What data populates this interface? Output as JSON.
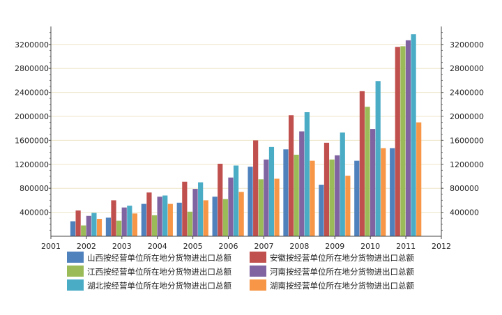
{
  "chart_data": {
    "type": "bar",
    "title": "",
    "xlabel": "",
    "ylabel": "",
    "x_ticks": [
      "2001",
      "2002",
      "2003",
      "2004",
      "2005",
      "2006",
      "2007",
      "2008",
      "2009",
      "2010",
      "2011",
      "2012"
    ],
    "categories": [
      "2002",
      "2003",
      "2004",
      "2005",
      "2006",
      "2007",
      "2008",
      "2009",
      "2010",
      "2011"
    ],
    "ylim": [
      0,
      3500000
    ],
    "y_ticks": [
      "400000",
      "800000",
      "1200000",
      "1600000",
      "2000000",
      "2400000",
      "2800000",
      "3200000"
    ],
    "grid": true,
    "legend_position": "bottom",
    "series": [
      {
        "name": "山西按经营单位所在地分货物进出口总额",
        "color": "#4f81bd",
        "values": [
          250000,
          310000,
          540000,
          560000,
          660000,
          1160000,
          1450000,
          860000,
          1260000,
          1470000
        ]
      },
      {
        "name": "安徽按经营单位所在地分货物进出口总额",
        "color": "#c0504d",
        "values": [
          430000,
          600000,
          730000,
          910000,
          1210000,
          1600000,
          2020000,
          1560000,
          2420000,
          3160000
        ]
      },
      {
        "name": "江西按经营单位所在地分货物进出口总额",
        "color": "#9bbb59",
        "values": [
          180000,
          260000,
          350000,
          410000,
          620000,
          950000,
          1360000,
          1280000,
          2160000,
          3170000
        ]
      },
      {
        "name": "河南按经营单位所在地分货物进出口总额",
        "color": "#8064a2",
        "values": [
          340000,
          480000,
          660000,
          790000,
          980000,
          1280000,
          1750000,
          1350000,
          1790000,
          3270000
        ]
      },
      {
        "name": "湖北按经营单位所在地分货物进出口总额",
        "color": "#4bacc6",
        "values": [
          390000,
          510000,
          680000,
          900000,
          1180000,
          1490000,
          2070000,
          1730000,
          2590000,
          3370000
        ]
      },
      {
        "name": "湖南按经营单位所在地分货物进出口总额",
        "color": "#f79646",
        "values": [
          290000,
          380000,
          540000,
          600000,
          740000,
          960000,
          1260000,
          1010000,
          1470000,
          1900000
        ]
      }
    ]
  }
}
